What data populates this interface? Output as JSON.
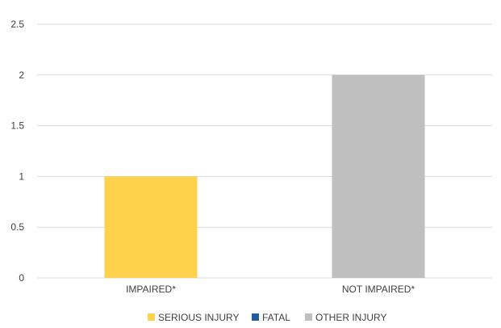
{
  "chart_data": {
    "type": "bar",
    "categories": [
      "IMPAIRED*",
      "NOT IMPAIRED*"
    ],
    "series": [
      {
        "name": "SERIOUS INJURY",
        "color": "#FFD24D",
        "values": [
          1,
          0
        ]
      },
      {
        "name": "FATAL",
        "color": "#1F5FA0",
        "values": [
          0,
          0
        ]
      },
      {
        "name": "OTHER INJURY",
        "color": "#BFBFBF",
        "values": [
          0,
          2
        ]
      }
    ],
    "yticks": [
      "0",
      "0.5",
      "1",
      "1.5",
      "2",
      "2.5"
    ],
    "ylim": [
      0,
      2.5
    ],
    "grid": true,
    "legend": "bottom",
    "title": "",
    "xlabel": "",
    "ylabel": ""
  }
}
